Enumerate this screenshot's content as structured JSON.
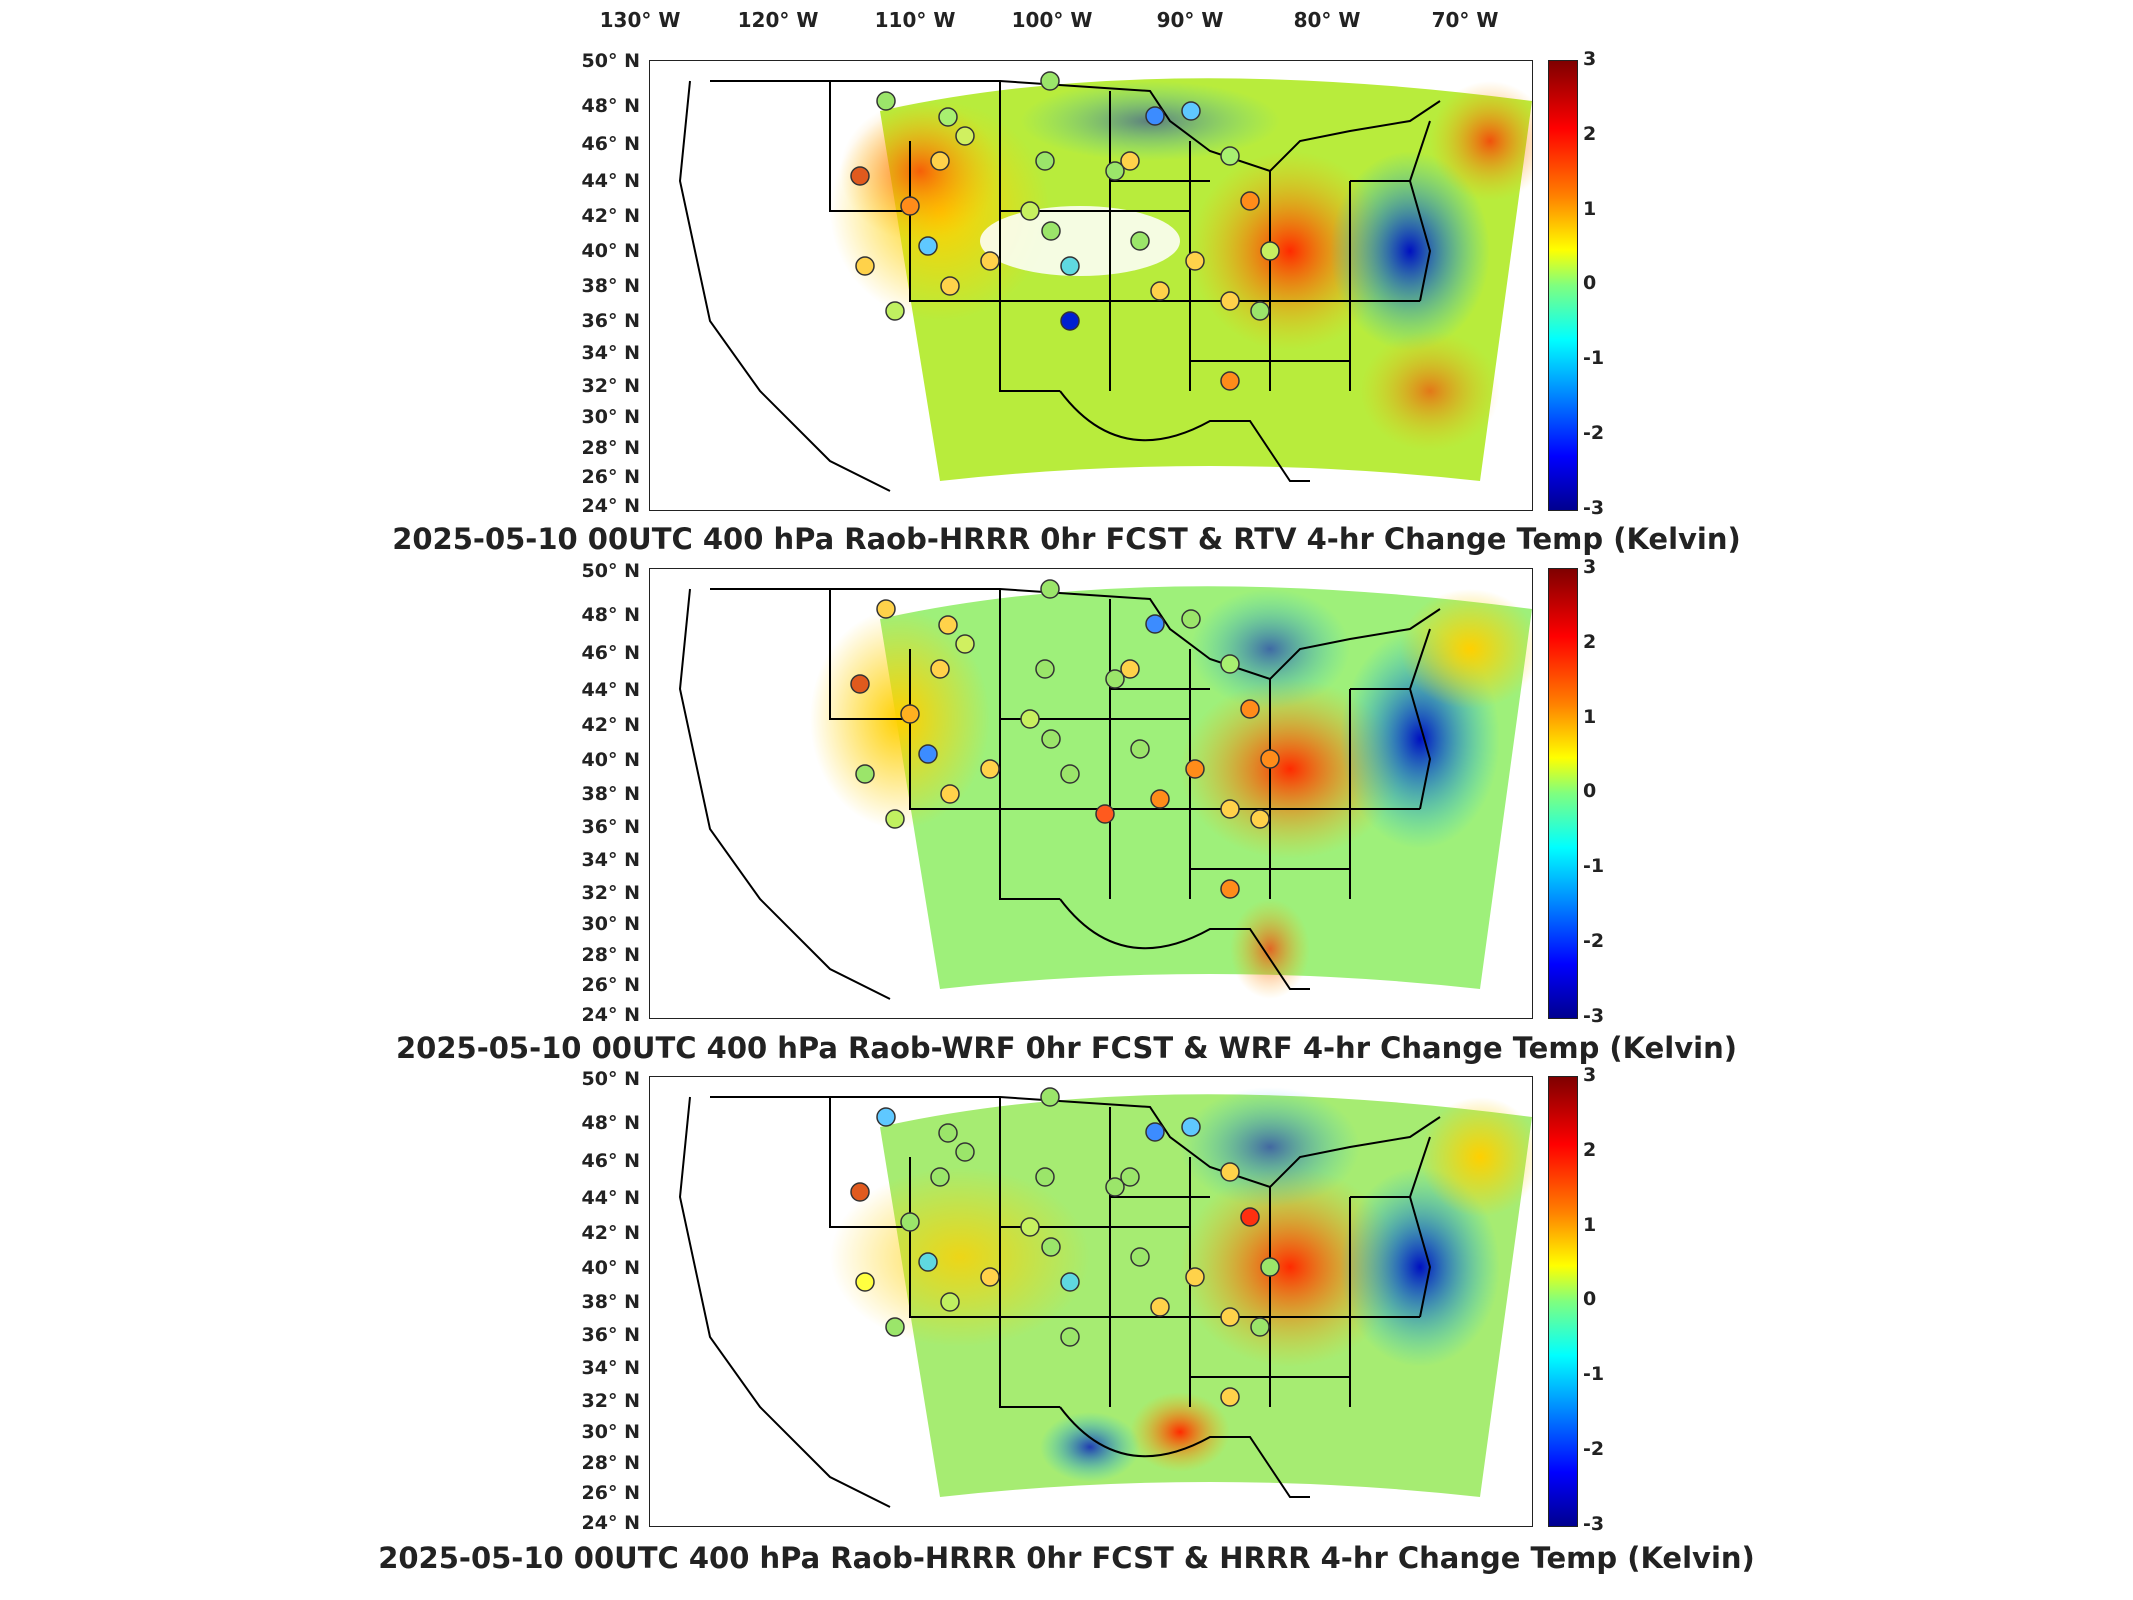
{
  "lon_labels": [
    {
      "text": "130° W"
    },
    {
      "text": "120° W"
    },
    {
      "text": "110° W"
    },
    {
      "text": "100° W"
    },
    {
      "text": "90° W"
    },
    {
      "text": "80° W"
    },
    {
      "text": "70° W"
    }
  ],
  "lat_labels": [
    "50° N",
    "48° N",
    "46° N",
    "44° N",
    "42° N",
    "40° N",
    "38° N",
    "36° N",
    "34° N",
    "32° N",
    "30° N",
    "28° N",
    "26° N",
    "24° N"
  ],
  "colorbar": {
    "ticks": [
      "3",
      "2",
      "1",
      "0",
      "-1",
      "-2",
      "-3"
    ],
    "range": [
      -3,
      3
    ],
    "colormap": "jet",
    "units": "Kelvin"
  },
  "panels": [
    {
      "title": "2025-05-10 00UTC 400 hPa Raob-HRRR 0hr FCST & RTV 4-hr Change Temp (Kelvin)"
    },
    {
      "title": "2025-05-10 00UTC 400 hPa Raob-WRF 0hr FCST & WRF 4-hr Change Temp (Kelvin)"
    },
    {
      "title": "2025-05-10 00UTC 400 hPa Raob-HRRR 0hr FCST & HRRR 4-hr Change Temp (Kelvin)"
    }
  ],
  "colors": {
    "warm": "#ff5a1e",
    "neutral": "#7ee87e",
    "cool": "#1e64ff",
    "background_field": "#a6e85a"
  }
}
